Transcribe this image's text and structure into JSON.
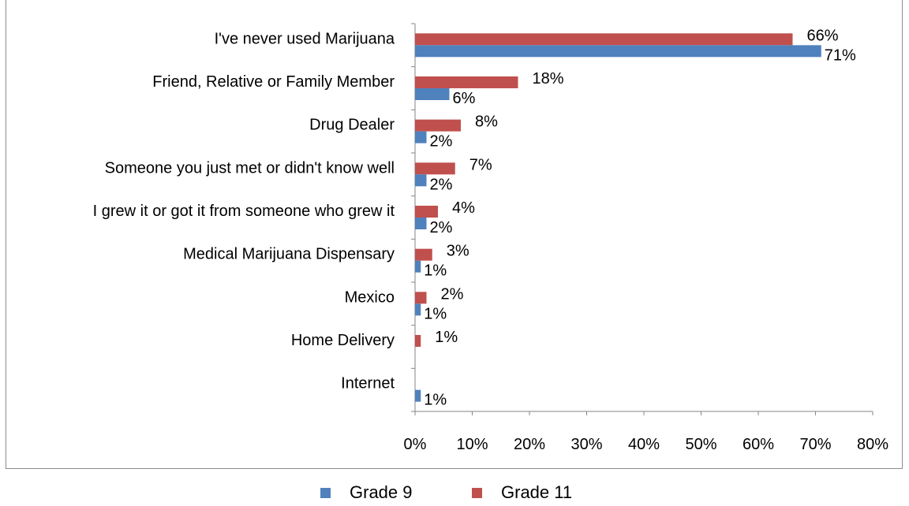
{
  "chart_data": {
    "type": "bar",
    "orientation": "horizontal",
    "categories": [
      "I've never used Marijuana",
      "Friend, Relative or Family Member",
      "Drug Dealer",
      "Someone you just met or didn't know well",
      "I grew it or got it from someone who grew it",
      "Medical Marijuana Dispensary",
      "Mexico",
      "Home Delivery",
      "Internet"
    ],
    "series": [
      {
        "name": "Grade 9",
        "color": "#4f81bd",
        "values": [
          71,
          6,
          2,
          2,
          2,
          1,
          1,
          0,
          1
        ],
        "labels": [
          "71%",
          "6%",
          "2%",
          "2%",
          "2%",
          "1%",
          "1%",
          "",
          "1%"
        ]
      },
      {
        "name": "Grade 11",
        "color": "#c0504d",
        "values": [
          66,
          18,
          8,
          7,
          4,
          3,
          2,
          1,
          0
        ],
        "labels": [
          "66%",
          "18%",
          "8%",
          "7%",
          "4%",
          "3%",
          "2%",
          "1%",
          ""
        ]
      }
    ],
    "xlim": [
      0,
      80
    ],
    "x_ticks": [
      "0%",
      "10%",
      "20%",
      "30%",
      "40%",
      "50%",
      "60%",
      "70%",
      "80%"
    ],
    "grid": false,
    "legend_position": "bottom"
  }
}
